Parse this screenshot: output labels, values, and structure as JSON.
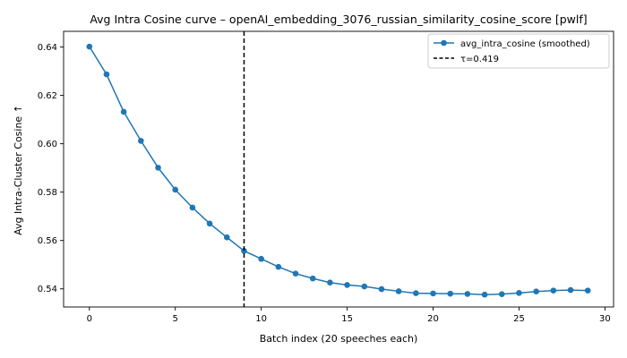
{
  "chart_data": {
    "type": "line",
    "title": "Avg Intra Cosine curve – openAI_embedding_3076_russian_similarity_cosine_score [pwlf]",
    "xlabel": "Batch index (20 speeches each)",
    "ylabel": "Avg Intra-Cluster Cosine ↑",
    "xlim": [
      -1.5,
      30.5
    ],
    "ylim": [
      0.5325,
      0.6465
    ],
    "xticks": [
      0,
      5,
      10,
      15,
      20,
      25,
      30
    ],
    "xtick_labels": [
      "0",
      "5",
      "10",
      "15",
      "20",
      "25",
      "30"
    ],
    "yticks": [
      0.54,
      0.56,
      0.58,
      0.6,
      0.62,
      0.64
    ],
    "ytick_labels": [
      "0.54",
      "0.56",
      "0.58",
      "0.60",
      "0.62",
      "0.64"
    ],
    "grid": false,
    "legend_position": "top-right",
    "series": [
      {
        "name": "avg_intra_cosine (smoothed)",
        "color": "#1f77b4",
        "marker": "circle",
        "x": [
          0,
          1,
          2,
          3,
          4,
          5,
          6,
          7,
          8,
          9,
          10,
          11,
          12,
          13,
          14,
          15,
          16,
          17,
          18,
          19,
          20,
          21,
          22,
          23,
          24,
          25,
          26,
          27,
          28,
          29
        ],
        "values": [
          0.6402,
          0.6287,
          0.6132,
          0.6012,
          0.5901,
          0.581,
          0.5736,
          0.567,
          0.5613,
          0.5557,
          0.5524,
          0.5491,
          0.5463,
          0.5443,
          0.5426,
          0.5416,
          0.541,
          0.5399,
          0.539,
          0.5382,
          0.5381,
          0.538,
          0.5379,
          0.5376,
          0.5378,
          0.5383,
          0.5389,
          0.5393,
          0.5395,
          0.5393
        ]
      }
    ],
    "threshold": {
      "name": "τ=0.419",
      "x": 9,
      "color": "#000000",
      "style": "dashed"
    }
  }
}
